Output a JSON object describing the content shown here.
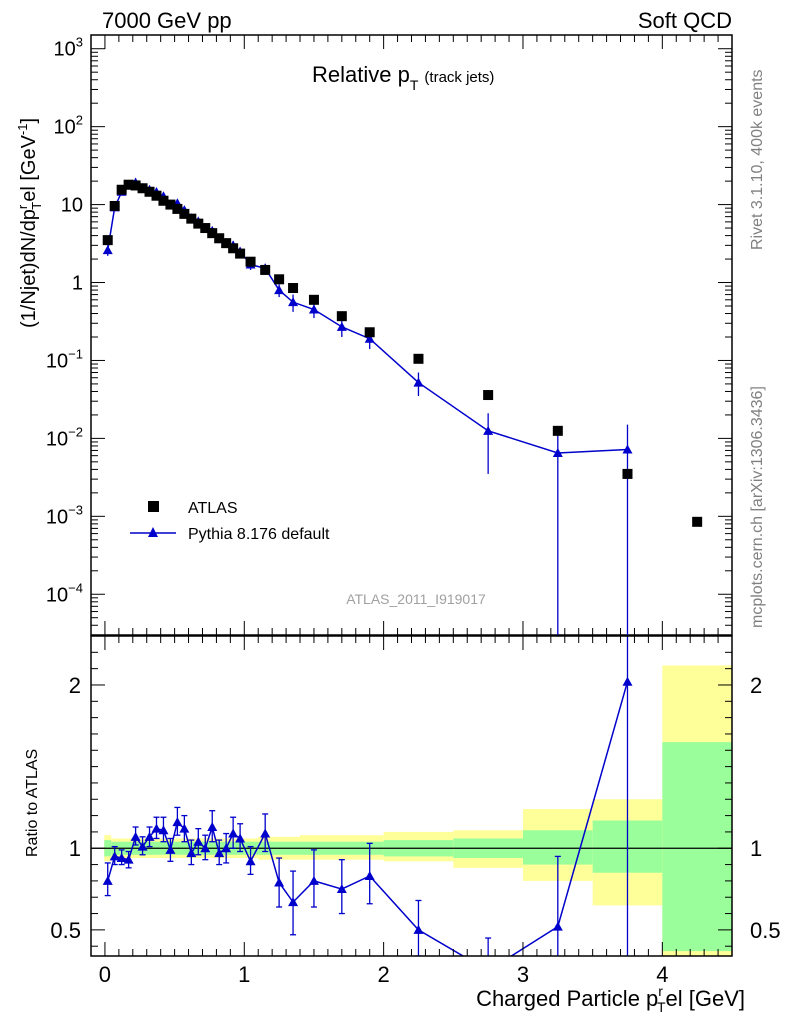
{
  "header": {
    "left": "7000 GeV pp",
    "right": "Soft QCD"
  },
  "side_labels": {
    "rivet": "Rivet 3.1.10,  400k events",
    "mcplots": "mcplots.cern.ch [arXiv:1306.3436]"
  },
  "colors": {
    "data": "#000000",
    "mc": "#0000cc",
    "band_inner": "#9aff9a",
    "band_outer": "#ffff99"
  },
  "chart_data": [
    {
      "type": "scatter",
      "title": "Relative p_T (track jets)",
      "title_main": "Relative p",
      "title_sub": "T",
      "title_small": "(track jets)",
      "ylabel": "(1/Njet)dN/dp^r_T el [GeV^-1]",
      "yscale": "log",
      "ylim": [
        3e-05,
        1500
      ],
      "xlim": [
        -0.1,
        4.5
      ],
      "analysis_tag": "ATLAS_2011_I919017",
      "legend_position": "bottom-left",
      "y_ticks": [
        {
          "value": 0.0001,
          "base": "10",
          "exp": "−4"
        },
        {
          "value": 0.001,
          "base": "10",
          "exp": "−3"
        },
        {
          "value": 0.01,
          "base": "10",
          "exp": "−2"
        },
        {
          "value": 0.1,
          "base": "10",
          "exp": "−1"
        },
        {
          "value": 1,
          "base": "1",
          "exp": ""
        },
        {
          "value": 10,
          "base": "10",
          "exp": ""
        },
        {
          "value": 100,
          "base": "10",
          "exp": "2"
        },
        {
          "value": 1000,
          "base": "10",
          "exp": "3"
        }
      ],
      "series": [
        {
          "name": "ATLAS",
          "marker": "square",
          "x": [
            0.02,
            0.07,
            0.12,
            0.17,
            0.22,
            0.27,
            0.32,
            0.37,
            0.42,
            0.47,
            0.52,
            0.57,
            0.62,
            0.67,
            0.72,
            0.77,
            0.82,
            0.87,
            0.92,
            0.97,
            1.045,
            1.15,
            1.25,
            1.35,
            1.5,
            1.7,
            1.9,
            2.25,
            2.75,
            3.25,
            3.75,
            4.25
          ],
          "y": [
            3.5,
            9.6,
            15.5,
            18.0,
            17.6,
            16.2,
            14.6,
            13.0,
            11.2,
            10.0,
            8.8,
            7.6,
            6.6,
            5.7,
            5.0,
            4.3,
            3.7,
            3.2,
            2.75,
            2.35,
            1.85,
            1.45,
            1.1,
            0.85,
            0.6,
            0.37,
            0.23,
            0.105,
            0.036,
            0.0125,
            0.0035,
            0.00085
          ]
        },
        {
          "name": "Pythia 8.176 default",
          "marker": "triangle",
          "x": [
            0.02,
            0.07,
            0.12,
            0.17,
            0.22,
            0.27,
            0.32,
            0.37,
            0.42,
            0.47,
            0.52,
            0.57,
            0.62,
            0.67,
            0.72,
            0.77,
            0.82,
            0.87,
            0.92,
            0.97,
            1.045,
            1.15,
            1.25,
            1.35,
            1.5,
            1.7,
            1.9,
            2.25,
            2.75,
            3.25,
            3.75
          ],
          "y": [
            2.6,
            9.2,
            14.6,
            17.5,
            19.2,
            16.4,
            15.5,
            14.5,
            12.8,
            10.0,
            10.4,
            8.5,
            6.7,
            6.1,
            5.0,
            4.6,
            3.6,
            3.2,
            3.0,
            2.5,
            1.7,
            1.52,
            0.8,
            0.56,
            0.45,
            0.27,
            0.19,
            0.052,
            0.0125,
            0.0065,
            0.0072
          ],
          "y_low": [
            2.2,
            8.3,
            13.6,
            16.7,
            18.2,
            15.5,
            14.7,
            13.6,
            12.0,
            9.3,
            9.6,
            7.8,
            6.1,
            5.5,
            4.5,
            4.1,
            3.2,
            2.8,
            2.6,
            2.2,
            1.45,
            1.3,
            0.65,
            0.42,
            0.35,
            0.2,
            0.14,
            0.035,
            0.0035,
            3e-05,
            3e-05
          ],
          "y_high": [
            3.0,
            10.1,
            15.6,
            18.3,
            20.2,
            17.3,
            16.3,
            15.4,
            13.6,
            10.7,
            11.2,
            9.2,
            7.3,
            6.7,
            5.5,
            5.1,
            4.0,
            3.6,
            3.4,
            2.8,
            1.95,
            1.74,
            0.95,
            0.7,
            0.55,
            0.34,
            0.24,
            0.07,
            0.021,
            0.013,
            0.015
          ]
        }
      ]
    },
    {
      "type": "line",
      "ylabel": "Ratio to ATLAS",
      "xlabel": "Charged Particle p^r_T el [GeV]",
      "xlabel_main": "Charged Particle p",
      "xlabel_tail": "el [GeV]",
      "xlabel_sub": "T",
      "xlabel_sup": "r",
      "ylim": [
        0.34,
        2.3
      ],
      "xlim": [
        -0.1,
        4.5
      ],
      "reference_line": 1,
      "x_ticks": [
        "0",
        "1",
        "2",
        "3",
        "4"
      ],
      "y_ticks": [
        "0.5",
        "1",
        "2"
      ],
      "bands": [
        {
          "x0": -0.005,
          "x1": 0.045,
          "inner": [
            0.95,
            1.05
          ],
          "outer": [
            0.92,
            1.08
          ]
        },
        {
          "x0": 0.045,
          "x1": 1.0,
          "inner": [
            0.96,
            1.04
          ],
          "outer": [
            0.94,
            1.06
          ]
        },
        {
          "x0": 1.0,
          "x1": 1.1,
          "inner": [
            0.96,
            1.04
          ],
          "outer": [
            0.94,
            1.06
          ]
        },
        {
          "x0": 1.1,
          "x1": 1.4,
          "inner": [
            0.96,
            1.04
          ],
          "outer": [
            0.93,
            1.07
          ]
        },
        {
          "x0": 1.4,
          "x1": 2.0,
          "inner": [
            0.96,
            1.04
          ],
          "outer": [
            0.93,
            1.08
          ]
        },
        {
          "x0": 2.0,
          "x1": 2.5,
          "inner": [
            0.95,
            1.05
          ],
          "outer": [
            0.92,
            1.1
          ]
        },
        {
          "x0": 2.5,
          "x1": 3.0,
          "inner": [
            0.94,
            1.06
          ],
          "outer": [
            0.88,
            1.11
          ]
        },
        {
          "x0": 3.0,
          "x1": 3.5,
          "inner": [
            0.9,
            1.11
          ],
          "outer": [
            0.8,
            1.24
          ]
        },
        {
          "x0": 3.5,
          "x1": 4.0,
          "inner": [
            0.85,
            1.17
          ],
          "outer": [
            0.65,
            1.3
          ]
        },
        {
          "x0": 4.0,
          "x1": 4.5,
          "inner": [
            0.37,
            1.65
          ],
          "outer": [
            0.34,
            2.12
          ]
        }
      ],
      "series": [
        {
          "name": "Pythia 8.176 default",
          "marker": "triangle",
          "x": [
            0.02,
            0.07,
            0.12,
            0.17,
            0.22,
            0.27,
            0.32,
            0.37,
            0.42,
            0.47,
            0.52,
            0.57,
            0.62,
            0.67,
            0.72,
            0.77,
            0.82,
            0.87,
            0.92,
            0.97,
            1.045,
            1.15,
            1.25,
            1.35,
            1.5,
            1.7,
            1.9,
            2.25,
            2.75,
            3.25,
            3.75
          ],
          "y": [
            0.8,
            0.95,
            0.94,
            0.93,
            1.07,
            1.01,
            1.07,
            1.12,
            1.11,
            0.99,
            1.16,
            1.12,
            0.97,
            1.04,
            1.0,
            1.13,
            0.97,
            1.0,
            1.09,
            1.06,
            0.92,
            1.09,
            0.79,
            0.67,
            0.8,
            0.75,
            0.83,
            0.5,
            0.25,
            0.52,
            2.02
          ],
          "y_low": [
            0.71,
            0.9,
            0.9,
            0.88,
            1.02,
            0.96,
            1.01,
            1.06,
            1.04,
            0.92,
            1.08,
            1.04,
            0.9,
            0.96,
            0.93,
            1.04,
            0.9,
            0.91,
            1.0,
            0.98,
            0.84,
            0.98,
            0.64,
            0.47,
            0.64,
            0.6,
            0.66,
            0.34,
            0.1,
            0.1,
            0.1
          ],
          "y_high": [
            0.91,
            1.01,
            0.99,
            0.98,
            1.13,
            1.07,
            1.13,
            1.19,
            1.19,
            1.06,
            1.25,
            1.2,
            1.05,
            1.12,
            1.08,
            1.23,
            1.05,
            1.09,
            1.19,
            1.15,
            1.01,
            1.21,
            0.94,
            0.86,
            0.99,
            0.93,
            1.03,
            0.68,
            0.45,
            0.95,
            3.0
          ]
        }
      ]
    }
  ]
}
